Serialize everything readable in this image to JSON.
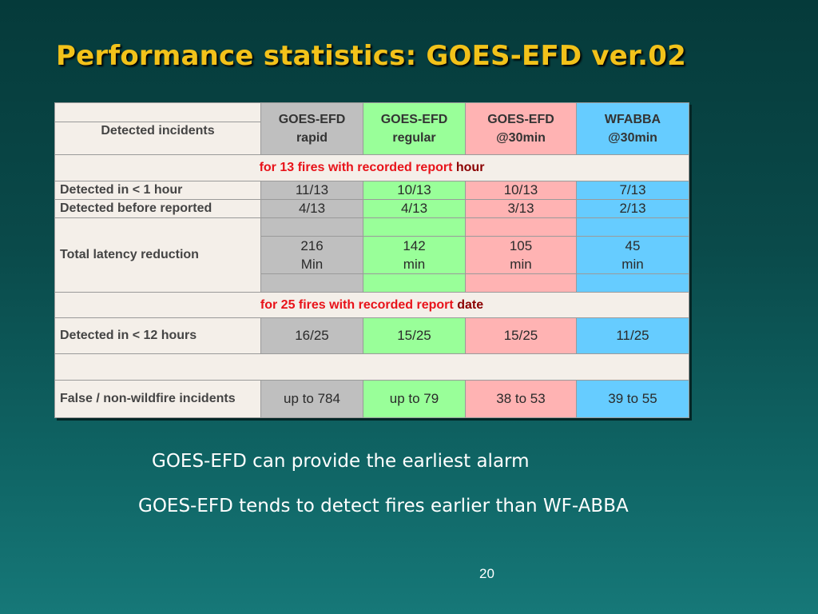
{
  "slide": {
    "title": "Performance statistics: GOES-EFD ver.02",
    "page_number": "20"
  },
  "table": {
    "corner_label": "Detected incidents",
    "headers": [
      {
        "line1": "GOES-EFD",
        "line2": "rapid"
      },
      {
        "line1": "GOES-EFD",
        "line2": "regular"
      },
      {
        "line1": "GOES-EFD",
        "line2": "@30min"
      },
      {
        "line1": "WFABBA",
        "line2": "@30min"
      }
    ],
    "section_hour": {
      "text": "for 13 fires with recorded report",
      "unit": "hour"
    },
    "row_1hour": {
      "label": "Detected in < 1 hour",
      "values": [
        "11/13",
        "10/13",
        "10/13",
        "7/13"
      ]
    },
    "row_before": {
      "label": "Detected before reported",
      "values": [
        "4/13",
        "4/13",
        "3/13",
        "2/13"
      ]
    },
    "row_latency": {
      "label": "Total  latency reduction",
      "values": [
        {
          "num": "216",
          "unit": "Min"
        },
        {
          "num": "142",
          "unit": "min"
        },
        {
          "num": "105",
          "unit": "min"
        },
        {
          "num": "45",
          "unit": "min"
        }
      ]
    },
    "section_date": {
      "text": "for 25 fires with recorded report",
      "unit": "date"
    },
    "row_12hours": {
      "label": "Detected in < 12 hours",
      "values": [
        "16/25",
        "15/25",
        "15/25",
        "11/25"
      ]
    },
    "row_false": {
      "label": "False / non-wildfire incidents",
      "values": [
        "up to 784",
        "up to 79",
        "38 to 53",
        "39 to 55"
      ]
    }
  },
  "notes": [
    "GOES-EFD can provide the earliest alarm",
    "GOES-EFD tends to detect fires earlier than WF-ABBA"
  ],
  "colors": {
    "title": "#f2c21a",
    "rapid": "#bfbfbf",
    "regular": "#99ff99",
    "efd30": "#ffb3b3",
    "wfabba": "#66ccff",
    "section_text": "#e8131a"
  }
}
